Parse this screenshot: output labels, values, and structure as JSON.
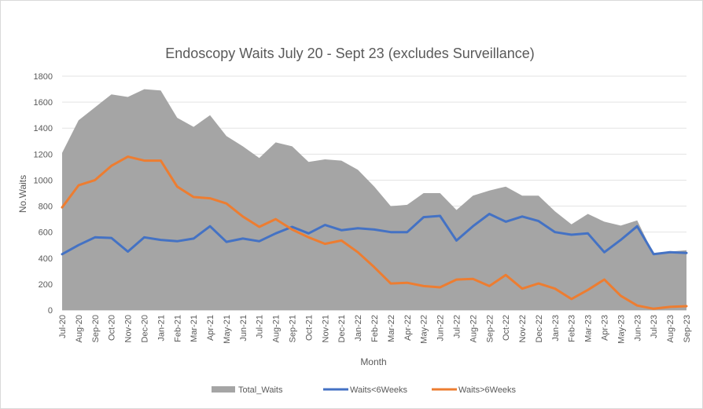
{
  "chart_data": {
    "type": "area",
    "title": "Endoscopy Waits July 20 - Sept 23 (excludes Surveillance)",
    "xlabel": "Month",
    "ylabel": "No.Waits",
    "ylim": [
      0,
      1800
    ],
    "yticks": [
      0,
      200,
      400,
      600,
      800,
      1000,
      1200,
      1400,
      1600,
      1800
    ],
    "grid": true,
    "legend_position": "bottom",
    "categories": [
      "Jul-20",
      "Aug-20",
      "Sep-20",
      "Oct-20",
      "Nov-20",
      "Dec-20",
      "Jan-21",
      "Feb-21",
      "Mar-21",
      "Apr-21",
      "May-21",
      "Jun-21",
      "Jul-21",
      "Aug-21",
      "Sep-21",
      "Oct-21",
      "Nov-21",
      "Dec-21",
      "Jan-22",
      "Feb-22",
      "Mar-22",
      "Apr-22",
      "May-22",
      "Jun-22",
      "Jul-22",
      "Aug-22",
      "Sep-22",
      "Oct-22",
      "Nov-22",
      "Dec-22",
      "Jan-23",
      "Feb-23",
      "Mar-23",
      "Apr-23",
      "May-23",
      "Jun-23",
      "Jul-23",
      "Aug-23",
      "Sep-23"
    ],
    "series": [
      {
        "name": "Total_Waits",
        "type": "area",
        "color": "#a5a5a5",
        "values": [
          1210,
          1460,
          1560,
          1660,
          1640,
          1700,
          1690,
          1480,
          1410,
          1500,
          1340,
          1260,
          1170,
          1290,
          1260,
          1140,
          1160,
          1150,
          1080,
          950,
          800,
          810,
          900,
          900,
          770,
          880,
          920,
          950,
          880,
          880,
          760,
          660,
          740,
          680,
          650,
          690,
          430,
          450,
          460
        ]
      },
      {
        "name": "Waits<6Weeks",
        "type": "line",
        "color": "#4472c4",
        "values": [
          430,
          500,
          560,
          555,
          450,
          560,
          540,
          530,
          550,
          645,
          525,
          550,
          530,
          590,
          640,
          590,
          655,
          615,
          630,
          620,
          600,
          600,
          715,
          725,
          535,
          645,
          740,
          680,
          720,
          685,
          600,
          580,
          590,
          445,
          540,
          645,
          430,
          445,
          440
        ]
      },
      {
        "name": "Waits>6Weeks",
        "type": "line",
        "color": "#ed7d31",
        "values": [
          790,
          960,
          1000,
          1110,
          1180,
          1150,
          1150,
          950,
          870,
          860,
          820,
          720,
          640,
          700,
          620,
          560,
          510,
          535,
          445,
          330,
          205,
          210,
          185,
          175,
          235,
          240,
          185,
          270,
          165,
          205,
          165,
          85,
          155,
          235,
          110,
          35,
          10,
          25,
          30
        ]
      }
    ]
  }
}
